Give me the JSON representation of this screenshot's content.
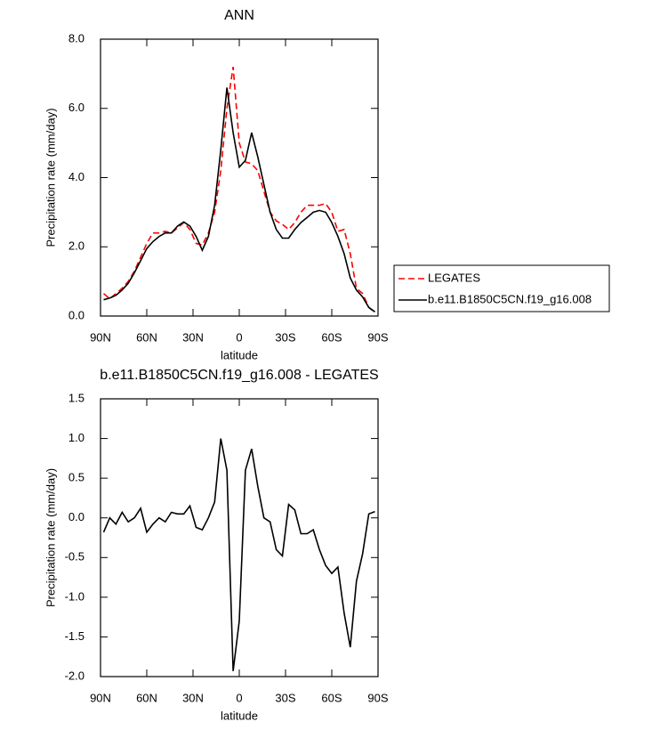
{
  "chart_data": [
    {
      "type": "line",
      "title": "ANN",
      "ylabel": "Precipitation rate (mm/day)",
      "xlabel": "latitude",
      "x": [
        88,
        84,
        80,
        76,
        72,
        68,
        64,
        60,
        56,
        52,
        48,
        44,
        40,
        36,
        32,
        28,
        24,
        20,
        16,
        12,
        8,
        4,
        0,
        -4,
        -8,
        -12,
        -16,
        -20,
        -24,
        -28,
        -32,
        -36,
        -40,
        -44,
        -48,
        -52,
        -56,
        -60,
        -64,
        -68,
        -72,
        -76,
        -80,
        -84,
        -88
      ],
      "series": [
        {
          "name": "LEGATES",
          "color": "#ff0000",
          "style": "dashed",
          "values": [
            0.65,
            0.5,
            0.65,
            0.8,
            1.0,
            1.3,
            1.7,
            2.1,
            2.4,
            2.4,
            2.45,
            2.4,
            2.55,
            2.7,
            2.5,
            2.1,
            2.05,
            2.4,
            3.0,
            4.2,
            6.0,
            7.2,
            5.0,
            4.45,
            4.4,
            4.2,
            3.6,
            3.0,
            2.75,
            2.65,
            2.5,
            2.7,
            3.0,
            3.2,
            3.2,
            3.2,
            3.25,
            3.0,
            2.45,
            2.5,
            1.8,
            0.8,
            0.65,
            0.25,
            0.1
          ]
        },
        {
          "name": "b.e11.B1850C5CN.f19_g16.008",
          "color": "#000000",
          "style": "solid",
          "values": [
            0.47,
            0.52,
            0.6,
            0.75,
            0.95,
            1.25,
            1.6,
            1.95,
            2.15,
            2.3,
            2.4,
            2.4,
            2.6,
            2.72,
            2.6,
            2.3,
            1.9,
            2.3,
            3.2,
            4.8,
            6.6,
            5.3,
            4.3,
            4.5,
            5.3,
            4.6,
            3.8,
            3.0,
            2.5,
            2.25,
            2.25,
            2.5,
            2.7,
            2.85,
            3.0,
            3.05,
            3.0,
            2.7,
            2.3,
            1.8,
            1.1,
            0.75,
            0.55,
            0.25,
            0.12
          ]
        }
      ],
      "xlim": [
        90,
        -90
      ],
      "xticks": [
        {
          "value": 90,
          "label": "90N"
        },
        {
          "value": 60,
          "label": "60N"
        },
        {
          "value": 30,
          "label": "30N"
        },
        0,
        {
          "value": -30,
          "label": "30S"
        },
        {
          "value": -60,
          "label": "60S"
        },
        {
          "value": -90,
          "label": "90S"
        }
      ],
      "ylim": [
        0,
        8
      ],
      "yticks": [
        {
          "value": 0,
          "label": "0.0"
        },
        {
          "value": 2,
          "label": "2.0"
        },
        {
          "value": 4,
          "label": "4.0"
        },
        {
          "value": 6,
          "label": "6.0"
        },
        {
          "value": 8,
          "label": "8.0"
        }
      ],
      "legend": "right"
    },
    {
      "type": "line",
      "title": "b.e11.B1850C5CN.f19_g16.008 - LEGATES",
      "ylabel": "Precipitation rate (mm/day)",
      "xlabel": "latitude",
      "x": [
        88,
        84,
        80,
        76,
        72,
        68,
        64,
        60,
        56,
        52,
        48,
        44,
        40,
        36,
        32,
        28,
        24,
        20,
        16,
        12,
        8,
        4,
        0,
        -4,
        -8,
        -12,
        -16,
        -20,
        -24,
        -28,
        -32,
        -36,
        -40,
        -44,
        -48,
        -52,
        -56,
        -60,
        -64,
        -68,
        -72,
        -76,
        -80,
        -84,
        -88
      ],
      "values": [
        -0.18,
        0.0,
        -0.08,
        0.07,
        -0.05,
        0.0,
        0.12,
        -0.18,
        -0.08,
        0.0,
        -0.05,
        0.07,
        0.05,
        0.05,
        0.15,
        -0.12,
        -0.15,
        0.0,
        0.2,
        1.0,
        0.6,
        -1.93,
        -1.3,
        0.6,
        0.87,
        0.4,
        0.0,
        -0.05,
        -0.4,
        -0.48,
        0.17,
        0.1,
        -0.2,
        -0.2,
        -0.15,
        -0.4,
        -0.6,
        -0.7,
        -0.62,
        -1.2,
        -1.63,
        -0.8,
        -0.45,
        0.05,
        0.08
      ],
      "color": "#000000",
      "xlim": [
        90,
        -90
      ],
      "xticks": [
        {
          "value": 90,
          "label": "90N"
        },
        {
          "value": 60,
          "label": "60N"
        },
        {
          "value": 30,
          "label": "30N"
        },
        0,
        {
          "value": -30,
          "label": "30S"
        },
        {
          "value": -60,
          "label": "60S"
        },
        {
          "value": -90,
          "label": "90S"
        }
      ],
      "ylim": [
        -2,
        1.5
      ],
      "yticks": [
        {
          "value": -2,
          "label": "-2.0"
        },
        {
          "value": -1.5,
          "label": "-1.5"
        },
        {
          "value": -1,
          "label": "-1.0"
        },
        {
          "value": -0.5,
          "label": "-0.5"
        },
        {
          "value": 0,
          "label": "0.0"
        },
        {
          "value": 0.5,
          "label": "0.5"
        },
        {
          "value": 1,
          "label": "1.0"
        },
        {
          "value": 1.5,
          "label": "1.5"
        }
      ]
    }
  ]
}
